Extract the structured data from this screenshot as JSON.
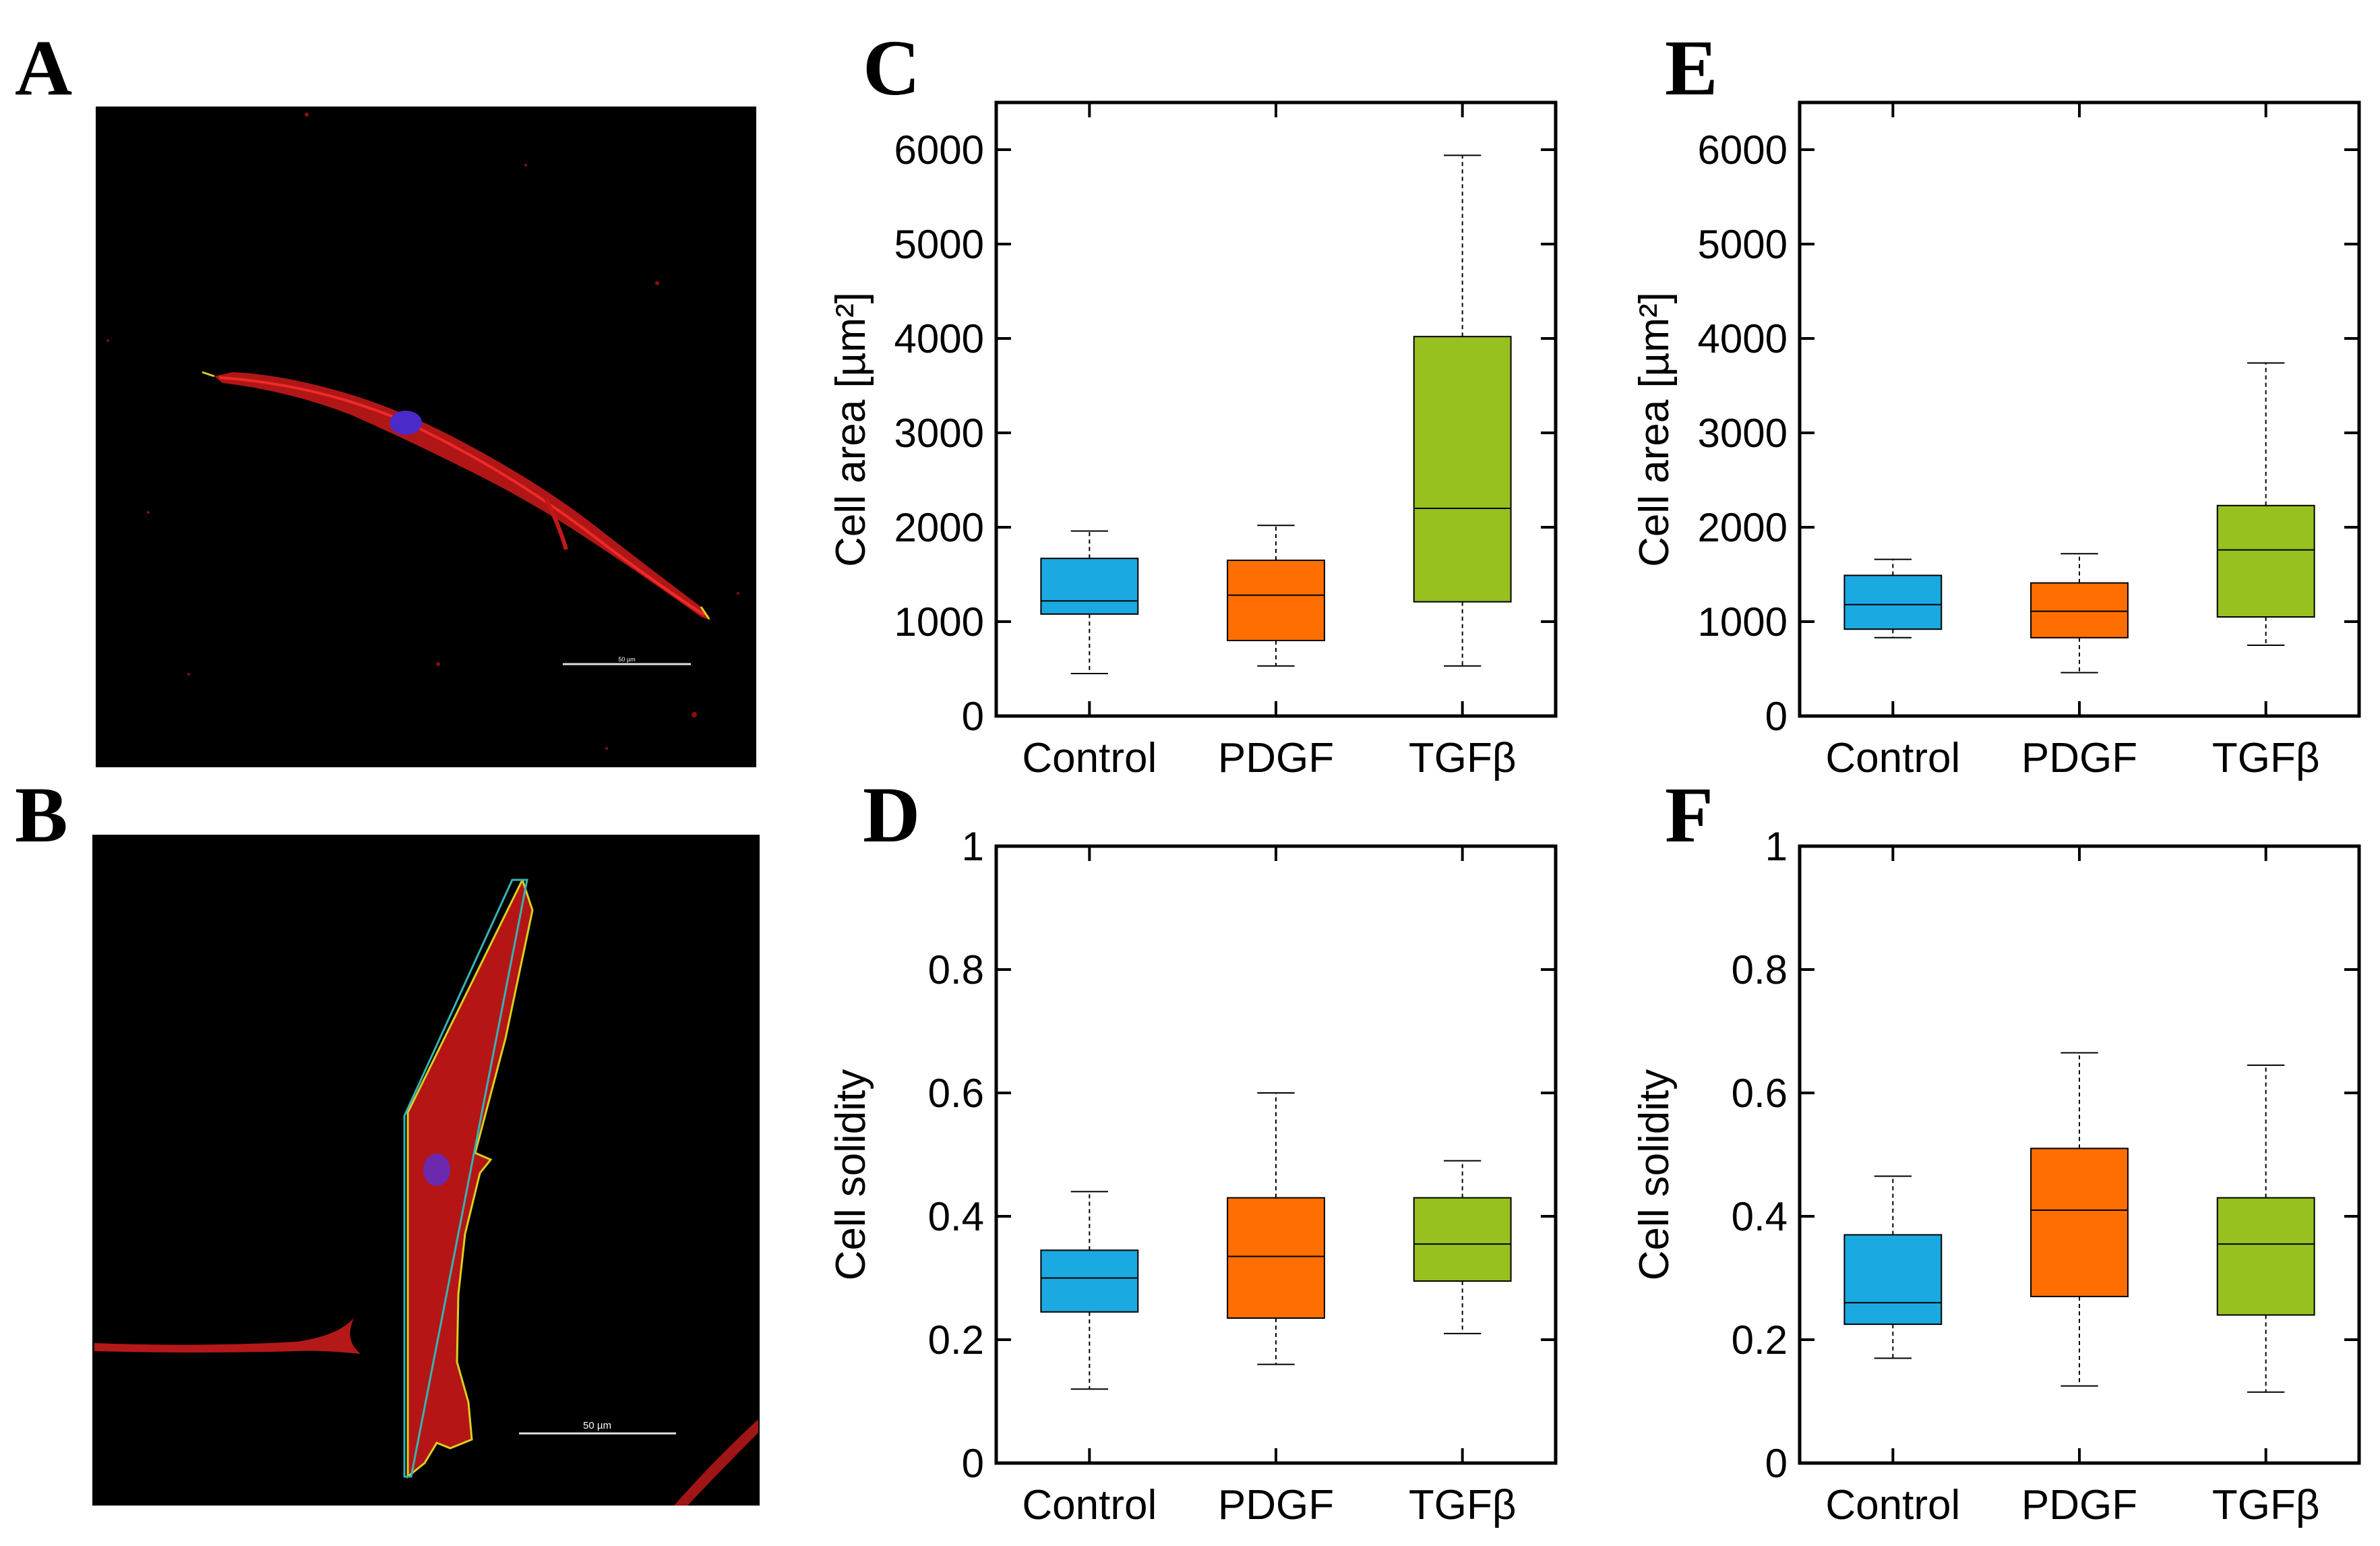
{
  "figure": {
    "panels": {
      "A": "A",
      "B": "B",
      "C": "C",
      "D": "D",
      "E": "E",
      "F": "F"
    },
    "micrographs": [
      {
        "id": "A",
        "scale_bar_label": "50 µm"
      },
      {
        "id": "B",
        "scale_bar_label": "50 µm"
      }
    ]
  },
  "colors": {
    "Control": "#1aa9e0",
    "PDGF": "#ff6e00",
    "TGFβ": "#96c11f"
  },
  "chart_data": [
    {
      "panel": "C",
      "type": "box",
      "ylabel": "Cell area [µm²]",
      "ylim": [
        0,
        6500
      ],
      "yticks": [
        0,
        1000,
        2000,
        3000,
        4000,
        5000,
        6000
      ],
      "categories": [
        "Control",
        "PDGF",
        "TGFβ"
      ],
      "boxes": [
        {
          "category": "Control",
          "whisker_low": 450,
          "q1": 1080,
          "median": 1220,
          "q3": 1670,
          "whisker_high": 1960
        },
        {
          "category": "PDGF",
          "whisker_low": 530,
          "q1": 800,
          "median": 1280,
          "q3": 1650,
          "whisker_high": 2020
        },
        {
          "category": "TGFβ",
          "whisker_low": 530,
          "q1": 1210,
          "median": 2200,
          "q3": 4020,
          "whisker_high": 5940
        }
      ]
    },
    {
      "panel": "E",
      "type": "box",
      "ylabel": "Cell area [µm²]",
      "ylim": [
        0,
        6500
      ],
      "yticks": [
        0,
        1000,
        2000,
        3000,
        4000,
        5000,
        6000
      ],
      "categories": [
        "Control",
        "PDGF",
        "TGFβ"
      ],
      "boxes": [
        {
          "category": "Control",
          "whisker_low": 830,
          "q1": 920,
          "median": 1180,
          "q3": 1490,
          "whisker_high": 1660
        },
        {
          "category": "PDGF",
          "whisker_low": 460,
          "q1": 830,
          "median": 1110,
          "q3": 1410,
          "whisker_high": 1720
        },
        {
          "category": "TGFβ",
          "whisker_low": 750,
          "q1": 1050,
          "median": 1760,
          "q3": 2230,
          "whisker_high": 3740
        }
      ]
    },
    {
      "panel": "D",
      "type": "box",
      "ylabel": "Cell solidity",
      "ylim": [
        0,
        1
      ],
      "yticks": [
        0,
        0.2,
        0.4,
        0.6,
        0.8,
        1
      ],
      "categories": [
        "Control",
        "PDGF",
        "TGFβ"
      ],
      "boxes": [
        {
          "category": "Control",
          "whisker_low": 0.12,
          "q1": 0.245,
          "median": 0.3,
          "q3": 0.345,
          "whisker_high": 0.44
        },
        {
          "category": "PDGF",
          "whisker_low": 0.16,
          "q1": 0.235,
          "median": 0.335,
          "q3": 0.43,
          "whisker_high": 0.6
        },
        {
          "category": "TGFβ",
          "whisker_low": 0.21,
          "q1": 0.295,
          "median": 0.355,
          "q3": 0.43,
          "whisker_high": 0.49
        }
      ]
    },
    {
      "panel": "F",
      "type": "box",
      "ylabel": "Cell solidity",
      "ylim": [
        0,
        1
      ],
      "yticks": [
        0,
        0.2,
        0.4,
        0.6,
        0.8,
        1
      ],
      "categories": [
        "Control",
        "PDGF",
        "TGFβ"
      ],
      "boxes": [
        {
          "category": "Control",
          "whisker_low": 0.17,
          "q1": 0.225,
          "median": 0.26,
          "q3": 0.37,
          "whisker_high": 0.465
        },
        {
          "category": "PDGF",
          "whisker_low": 0.125,
          "q1": 0.27,
          "median": 0.41,
          "q3": 0.51,
          "whisker_high": 0.665
        },
        {
          "category": "TGFβ",
          "whisker_low": 0.115,
          "q1": 0.24,
          "median": 0.355,
          "q3": 0.43,
          "whisker_high": 0.645
        }
      ]
    }
  ]
}
